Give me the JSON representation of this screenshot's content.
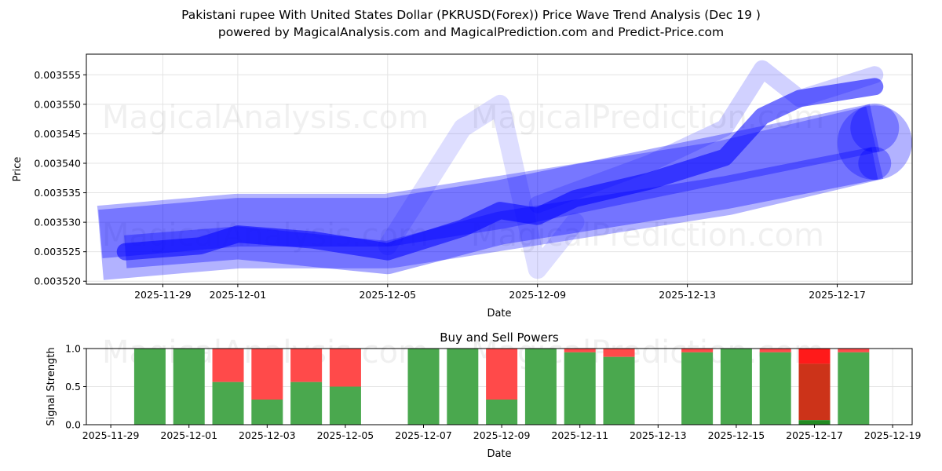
{
  "title_line1": "Pakistani rupee With United States Dollar (PKRUSD(Forex)) Price Wave Trend Analysis (Dec 19 )",
  "title_line2": "powered by MagicalAnalysis.com and MagicalPrediction.com and Predict-Price.com",
  "watermarks": [
    "MagicalAnalysis.com",
    "MagicalPrediction.com"
  ],
  "chart_data": [
    {
      "type": "line",
      "title": "",
      "xlabel": "Date",
      "ylabel": "Price",
      "xlim": [
        "2025-11-26T23:00",
        "2025-12-19T00:00"
      ],
      "ylim": [
        0.0035195,
        0.0035585
      ],
      "grid": true,
      "xticks": [
        "2025-11-29",
        "2025-12-01",
        "2025-12-05",
        "2025-12-09",
        "2025-12-13",
        "2025-12-17"
      ],
      "yticks": [
        "0.003520",
        "0.003525",
        "0.003530",
        "0.003535",
        "0.003540",
        "0.003545",
        "0.003550",
        "0.003555"
      ],
      "color": "#0000ff",
      "series": [
        {
          "name": "wave-band-wide",
          "points": [
            [
              "2025-11-27T08:00",
              0.0035265
            ],
            [
              "2025-12-01",
              0.0035285
            ],
            [
              "2025-12-05",
              0.0035285
            ],
            [
              "2025-12-14",
              0.0035375
            ],
            [
              "2025-12-18",
              0.0035435
            ]
          ]
        },
        {
          "name": "wave-band-upper",
          "points": [
            [
              "2025-11-27T08:00",
              0.003528
            ],
            [
              "2025-12-01",
              0.00353
            ],
            [
              "2025-12-05",
              0.00353
            ],
            [
              "2025-12-08",
              0.003533
            ],
            [
              "2025-12-18",
              0.003546
            ]
          ]
        },
        {
          "name": "wave-band-lower",
          "points": [
            [
              "2025-11-28",
              0.003525
            ],
            [
              "2025-12-01",
              0.0035265
            ],
            [
              "2025-12-05",
              0.003524
            ],
            [
              "2025-12-08",
              0.003529
            ],
            [
              "2025-12-14",
              0.003535
            ],
            [
              "2025-12-18",
              0.00354
            ]
          ]
        },
        {
          "name": "wave-spike",
          "points": [
            [
              "2025-12-05",
              0.003526
            ],
            [
              "2025-12-07",
              0.003546
            ],
            [
              "2025-12-08",
              0.00355
            ],
            [
              "2025-12-09",
              0.003522
            ],
            [
              "2025-12-10",
              0.00353
            ]
          ]
        },
        {
          "name": "wave-upper-late",
          "points": [
            [
              "2025-12-09",
              0.003533
            ],
            [
              "2025-12-12",
              0.00354
            ],
            [
              "2025-12-14",
              0.003546
            ],
            [
              "2025-12-15",
              0.003556
            ],
            [
              "2025-12-16",
              0.003551
            ],
            [
              "2025-12-18",
              0.003555
            ]
          ]
        },
        {
          "name": "wave-center",
          "points": [
            [
              "2025-11-28",
              0.003525
            ],
            [
              "2025-11-30",
              0.003526
            ],
            [
              "2025-12-01",
              0.003528
            ],
            [
              "2025-12-03",
              0.003527
            ],
            [
              "2025-12-05",
              0.003525
            ],
            [
              "2025-12-07",
              0.003529
            ],
            [
              "2025-12-08",
              0.003532
            ],
            [
              "2025-12-09",
              0.003531
            ],
            [
              "2025-12-10",
              0.003534
            ],
            [
              "2025-12-12",
              0.003537
            ],
            [
              "2025-12-14",
              0.003541
            ],
            [
              "2025-12-15",
              0.003548
            ],
            [
              "2025-12-16",
              0.003551
            ],
            [
              "2025-12-18",
              0.003553
            ]
          ]
        }
      ]
    },
    {
      "type": "bar",
      "title": "Buy and Sell Powers",
      "xlabel": "Date",
      "ylabel": "Signal Strength",
      "ylim": [
        0,
        1.0
      ],
      "xlim": [
        "2025-11-28T09:00",
        "2025-12-19T12:00"
      ],
      "grid": true,
      "xticks": [
        "2025-11-29",
        "2025-12-01",
        "2025-12-03",
        "2025-12-05",
        "2025-12-07",
        "2025-12-09",
        "2025-12-11",
        "2025-12-13",
        "2025-12-15",
        "2025-12-17",
        "2025-12-19"
      ],
      "yticks": [
        "0.0",
        "0.5",
        "1.0"
      ],
      "buy_color": "#4aa84e",
      "sell_color": "#ff4a4a",
      "categories": [
        "2025-11-30",
        "2025-12-01",
        "2025-12-02",
        "2025-12-03",
        "2025-12-04",
        "2025-12-05",
        "2025-12-07",
        "2025-12-08",
        "2025-12-09",
        "2025-12-10",
        "2025-12-11",
        "2025-12-12",
        "2025-12-14",
        "2025-12-15",
        "2025-12-16",
        "2025-12-17",
        "2025-12-18"
      ],
      "buy": [
        1,
        1,
        0.56,
        0.33,
        0.56,
        0.5,
        1,
        1,
        0.33,
        1,
        0.95,
        0.89,
        0.95,
        1,
        0.95,
        0.06,
        0.95
      ],
      "overlap": [
        0,
        0,
        0,
        0,
        0,
        0,
        0,
        0,
        0,
        0,
        0,
        0,
        0,
        0,
        0,
        0.8,
        0
      ]
    }
  ]
}
